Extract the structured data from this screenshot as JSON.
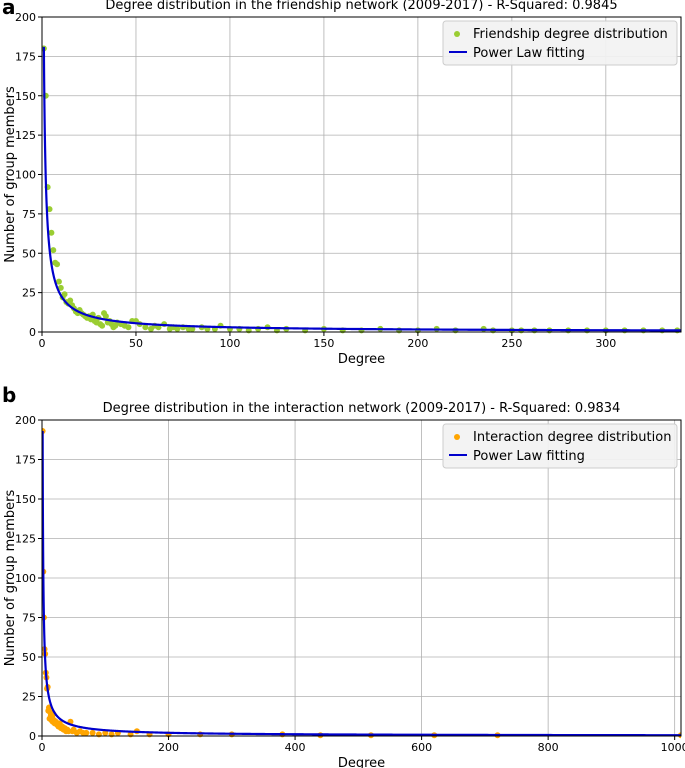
{
  "chart_data": [
    {
      "type": "scatter",
      "panel_label": "a",
      "title": "Degree distribution in the friendship network (2009-2017) - R-Squared: 0.9845",
      "xlabel": "Degree",
      "ylabel": "Number of group members",
      "xlim": [
        0,
        340
      ],
      "ylim": [
        0,
        200
      ],
      "xticks": [
        0,
        50,
        100,
        150,
        200,
        250,
        300
      ],
      "yticks": [
        0,
        25,
        50,
        75,
        100,
        125,
        150,
        175,
        200
      ],
      "grid": true,
      "legend_position": "top-right",
      "series": [
        {
          "name": "Friendship degree distribution",
          "kind": "scatter",
          "color": "#9acd32",
          "points": [
            [
              1,
              180
            ],
            [
              2,
              150
            ],
            [
              3,
              92
            ],
            [
              4,
              78
            ],
            [
              5,
              63
            ],
            [
              6,
              52
            ],
            [
              7,
              44
            ],
            [
              8,
              43
            ],
            [
              9,
              32
            ],
            [
              10,
              28
            ],
            [
              11,
              22
            ],
            [
              12,
              24
            ],
            [
              13,
              19
            ],
            [
              14,
              18
            ],
            [
              15,
              20
            ],
            [
              16,
              17
            ],
            [
              17,
              15
            ],
            [
              18,
              13
            ],
            [
              19,
              12
            ],
            [
              20,
              14
            ],
            [
              21,
              12
            ],
            [
              22,
              11
            ],
            [
              23,
              10
            ],
            [
              24,
              9
            ],
            [
              25,
              10
            ],
            [
              26,
              8
            ],
            [
              27,
              11
            ],
            [
              28,
              7
            ],
            [
              29,
              6
            ],
            [
              30,
              9
            ],
            [
              31,
              5
            ],
            [
              32,
              4
            ],
            [
              33,
              12
            ],
            [
              34,
              10
            ],
            [
              35,
              6
            ],
            [
              36,
              7
            ],
            [
              37,
              5
            ],
            [
              38,
              3
            ],
            [
              39,
              4
            ],
            [
              40,
              6
            ],
            [
              42,
              5
            ],
            [
              44,
              4
            ],
            [
              46,
              3
            ],
            [
              48,
              7
            ],
            [
              50,
              7
            ],
            [
              52,
              5
            ],
            [
              55,
              3
            ],
            [
              58,
              2
            ],
            [
              60,
              4
            ],
            [
              62,
              3
            ],
            [
              65,
              5
            ],
            [
              68,
              2
            ],
            [
              70,
              3
            ],
            [
              72,
              2
            ],
            [
              75,
              3
            ],
            [
              78,
              2
            ],
            [
              80,
              2
            ],
            [
              85,
              3
            ],
            [
              88,
              2
            ],
            [
              92,
              2
            ],
            [
              95,
              4
            ],
            [
              100,
              2
            ],
            [
              105,
              2
            ],
            [
              110,
              1
            ],
            [
              115,
              2
            ],
            [
              120,
              3
            ],
            [
              125,
              1
            ],
            [
              130,
              2
            ],
            [
              140,
              1
            ],
            [
              150,
              2
            ],
            [
              160,
              1
            ],
            [
              170,
              1
            ],
            [
              180,
              2
            ],
            [
              190,
              1
            ],
            [
              200,
              1
            ],
            [
              210,
              2
            ],
            [
              220,
              1
            ],
            [
              235,
              2
            ],
            [
              240,
              1
            ],
            [
              250,
              1
            ],
            [
              255,
              1
            ],
            [
              262,
              1
            ],
            [
              270,
              1
            ],
            [
              280,
              1
            ],
            [
              290,
              1
            ],
            [
              300,
              1
            ],
            [
              310,
              1
            ],
            [
              320,
              1
            ],
            [
              330,
              1
            ],
            [
              338,
              1
            ]
          ]
        },
        {
          "name": "Power Law fitting",
          "kind": "line",
          "color": "#0000cc",
          "coefficient": 181,
          "exponent": 0.89
        }
      ]
    },
    {
      "type": "scatter",
      "panel_label": "b",
      "title": "Degree distribution in the interaction network (2009-2017) - R-Squared: 0.9834",
      "xlabel": "Degree",
      "ylabel": "Number of group members",
      "xlim": [
        0,
        1010
      ],
      "ylim": [
        0,
        200
      ],
      "xticks": [
        0,
        200,
        400,
        600,
        800,
        1000
      ],
      "yticks": [
        0,
        25,
        50,
        75,
        100,
        125,
        150,
        175,
        200
      ],
      "grid": true,
      "legend_position": "top-right",
      "series": [
        {
          "name": "Interaction degree distribution",
          "kind": "scatter",
          "color": "#ffa500",
          "points": [
            [
              1,
              193
            ],
            [
              2,
              104
            ],
            [
              3,
              75
            ],
            [
              4,
              55
            ],
            [
              5,
              52
            ],
            [
              6,
              40
            ],
            [
              7,
              37
            ],
            [
              8,
              30
            ],
            [
              9,
              31
            ],
            [
              10,
              16
            ],
            [
              11,
              18
            ],
            [
              12,
              11
            ],
            [
              13,
              15
            ],
            [
              14,
              13
            ],
            [
              15,
              10
            ],
            [
              16,
              12
            ],
            [
              17,
              9
            ],
            [
              18,
              14
            ],
            [
              19,
              10
            ],
            [
              20,
              8
            ],
            [
              22,
              9
            ],
            [
              24,
              7
            ],
            [
              26,
              6
            ],
            [
              28,
              8
            ],
            [
              30,
              5
            ],
            [
              32,
              6
            ],
            [
              34,
              4
            ],
            [
              36,
              5
            ],
            [
              38,
              3
            ],
            [
              40,
              4
            ],
            [
              42,
              3
            ],
            [
              45,
              9
            ],
            [
              48,
              3
            ],
            [
              50,
              4
            ],
            [
              55,
              2
            ],
            [
              60,
              3
            ],
            [
              65,
              2
            ],
            [
              70,
              2
            ],
            [
              80,
              2
            ],
            [
              90,
              1
            ],
            [
              100,
              2
            ],
            [
              110,
              1
            ],
            [
              120,
              2
            ],
            [
              140,
              1
            ],
            [
              150,
              3
            ],
            [
              170,
              1
            ],
            [
              200,
              1
            ],
            [
              250,
              1
            ],
            [
              300,
              1
            ],
            [
              380,
              1
            ],
            [
              440,
              0.5
            ],
            [
              520,
              0.5
            ],
            [
              620,
              0.5
            ],
            [
              720,
              0.5
            ],
            [
              1010,
              0.5
            ]
          ]
        },
        {
          "name": "Power Law fitting",
          "kind": "line",
          "color": "#0000cc",
          "coefficient": 193,
          "exponent": 0.86
        }
      ]
    }
  ]
}
